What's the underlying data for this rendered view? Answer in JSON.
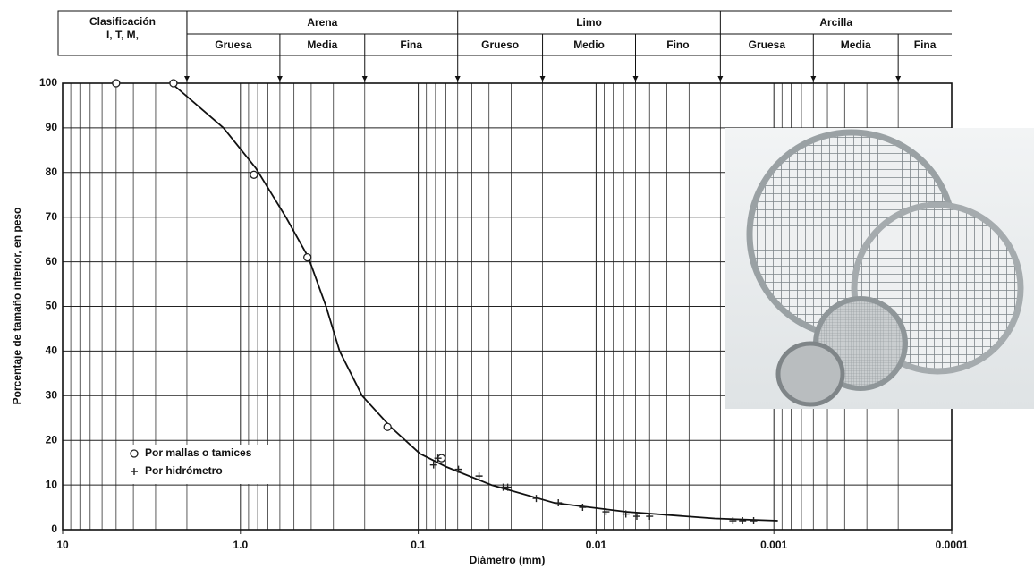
{
  "chart_data": {
    "type": "grain-size",
    "xlabel": "Diámetro (mm)",
    "ylabel": "Porcentaje de tamaño inferior, en peso",
    "log_x": true,
    "grid": true,
    "xlim": [
      10,
      0.0001
    ],
    "ylim": [
      0,
      100
    ],
    "xticks": [
      10,
      {
        "value": 1,
        "label": "1.0"
      },
      0.1,
      0.01,
      0.001,
      0.0001
    ],
    "yticks": [
      0,
      10,
      20,
      30,
      40,
      50,
      60,
      70,
      80,
      90,
      100
    ],
    "legend_position": "lower left",
    "series": [
      {
        "name": "Por mallas o tamices",
        "marker": "circle",
        "color": "#222222",
        "x": [
          5.0,
          2.38,
          0.84,
          0.42,
          0.149,
          0.074
        ],
        "values": [
          100,
          100,
          79.5,
          61,
          23,
          16
        ]
      },
      {
        "name": "Por hidrómetro",
        "marker": "plus",
        "color": "#222222",
        "x": [
          0.082,
          0.0775,
          0.0594,
          0.0455,
          0.0333,
          0.0314,
          0.0217,
          0.0163,
          0.0119,
          0.0088,
          0.0068,
          0.0059,
          0.005,
          0.0017,
          0.0015,
          0.0013
        ],
        "values": [
          14.5,
          16,
          13.5,
          12,
          9.5,
          9.5,
          7,
          6,
          5,
          4,
          3.5,
          3,
          3,
          2,
          2,
          2
        ]
      }
    ],
    "curve": {
      "color": "#111111",
      "x": [
        2.44,
        1.245,
        0.82,
        0.555,
        0.415,
        0.33,
        0.277,
        0.207,
        0.143,
        0.0977,
        0.069,
        0.0388,
        0.0172,
        0.0068,
        0.00215,
        0.00095
      ],
      "values": [
        100,
        90,
        81,
        70,
        61,
        50,
        40,
        30,
        23,
        17,
        14,
        10,
        6,
        4,
        2.5,
        2
      ]
    },
    "classification": {
      "label": [
        "Clasificación",
        "I, T, M,"
      ],
      "boundaries": [
        2,
        0.6,
        0.2,
        0.06,
        0.02,
        0.006,
        0.002,
        0.0006,
        0.0002
      ],
      "groups": [
        {
          "name": "Arena",
          "subclasses": [
            "Gruesa",
            "Media",
            "Fina"
          ]
        },
        {
          "name": "Limo",
          "subclasses": [
            "Grueso",
            "Medio",
            "Fino"
          ]
        },
        {
          "name": "Arcilla",
          "subclasses": [
            "Gruesa",
            "Media",
            "Fina"
          ]
        }
      ]
    }
  }
}
